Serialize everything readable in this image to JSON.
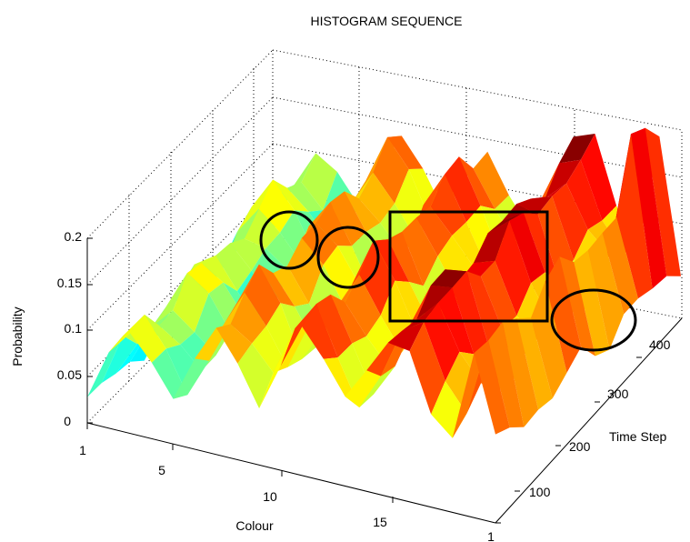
{
  "chart_data": {
    "type": "surface",
    "title": "HISTOGRAM SEQUENCE",
    "xlabel": "Colour",
    "ylabel": "Time Step",
    "zlabel": "Probability",
    "x_ticks": [
      "1",
      "5",
      "10",
      "15"
    ],
    "y_ticks": [
      "1",
      "100",
      "200",
      "300",
      "400"
    ],
    "z_ticks": [
      "0",
      "0.05",
      "0.1",
      "0.15",
      "0.2"
    ],
    "xlim": [
      1,
      20
    ],
    "ylim": [
      1,
      450
    ],
    "zlim": [
      0,
      0.2
    ],
    "grid": true,
    "colormap": "jet",
    "colors": {
      "low": "#00008f",
      "mid_low": "#00bfff",
      "mid": "#7fff7f",
      "mid_high": "#ffbf00",
      "high": "#800000"
    },
    "colour_profile_by_time_step": [
      0.02,
      0.07,
      0.1,
      0.08,
      0.05,
      0.1,
      0.14,
      0.11,
      0.07,
      0.12,
      0.16,
      0.12,
      0.08,
      0.12,
      0.17,
      0.18,
      0.12,
      0.09,
      0.23,
      0.08
    ],
    "annotations": [
      {
        "shape": "circle",
        "location": "left-peak-area"
      },
      {
        "shape": "circle",
        "location": "left-peak-area"
      },
      {
        "shape": "rectangle",
        "location": "central-ridges"
      },
      {
        "shape": "circle",
        "location": "right-rear-area"
      }
    ]
  }
}
